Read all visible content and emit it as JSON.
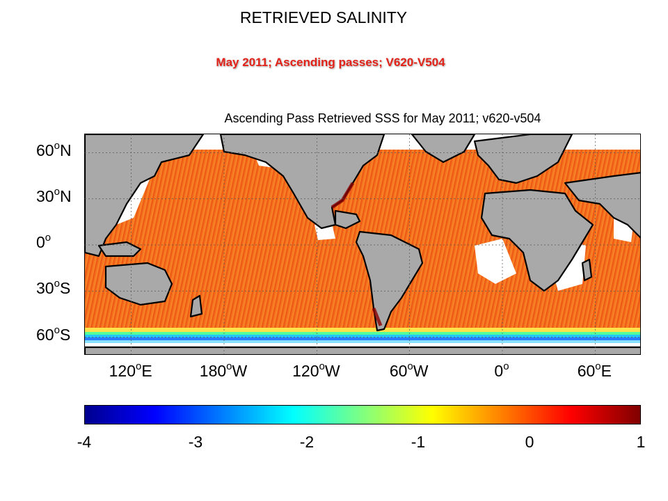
{
  "slide": {
    "title": "RETRIEVED SALINITY",
    "subtitle": "May 2011; Ascending passes; V620-V504"
  },
  "map": {
    "title": "Ascending Pass Retrieved SSS for May 2011; v620-v504",
    "projection": "equirectangular",
    "lon_range": [
      90,
      450
    ],
    "lat_range": [
      -72,
      72
    ],
    "latitude_labels": [
      {
        "value": "60",
        "deg": "o",
        "hemi": "N"
      },
      {
        "value": "30",
        "deg": "o",
        "hemi": "N"
      },
      {
        "value": "0",
        "deg": "o",
        "hemi": ""
      },
      {
        "value": "30",
        "deg": "o",
        "hemi": "S"
      },
      {
        "value": "60",
        "deg": "o",
        "hemi": "S"
      }
    ],
    "longitude_labels": [
      {
        "value": "120",
        "deg": "o",
        "hemi": "E"
      },
      {
        "value": "180",
        "deg": "o",
        "hemi": "W"
      },
      {
        "value": "120",
        "deg": "o",
        "hemi": "W"
      },
      {
        "value": "60",
        "deg": "o",
        "hemi": "W"
      },
      {
        "value": "0",
        "deg": "o",
        "hemi": ""
      },
      {
        "value": "60",
        "deg": "o",
        "hemi": "E"
      }
    ],
    "grid": true,
    "land_color": "#a9a9a9",
    "coast_color": "#000000",
    "missing_color": "#ffffff",
    "dominant_ocean_value": 0
  },
  "colorbar": {
    "min": -4,
    "max": 1,
    "tick_labels": [
      "-4",
      "-3",
      "-2",
      "-1",
      "0",
      "1"
    ],
    "colormap": "jet",
    "stops": [
      "#00008f",
      "#0000ff",
      "#0080ff",
      "#00ffff",
      "#80ff80",
      "#ffff00",
      "#ff8000",
      "#ff0000",
      "#800000"
    ]
  }
}
